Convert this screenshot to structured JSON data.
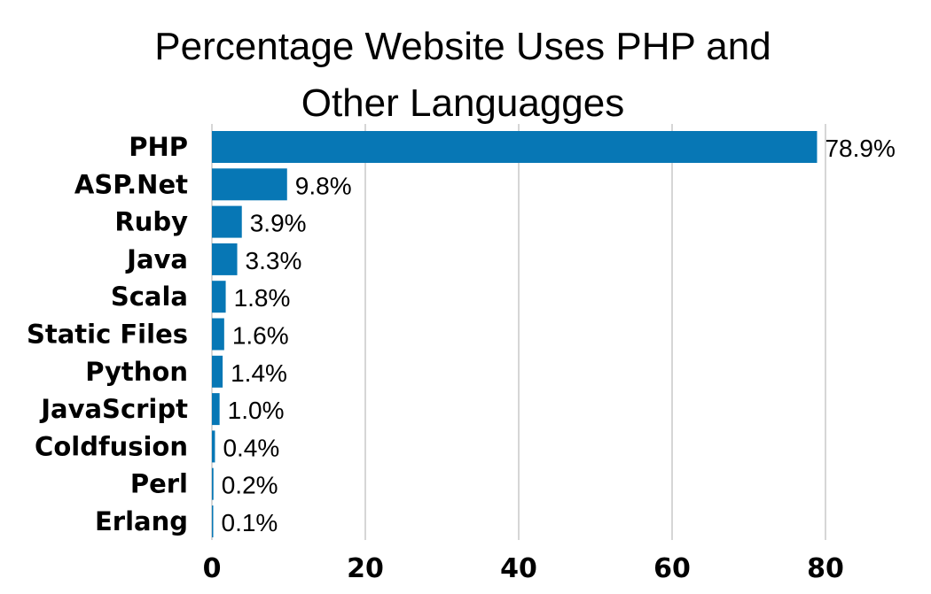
{
  "chart_data": {
    "type": "bar",
    "orientation": "horizontal",
    "title_lines": [
      "Percentage Website Uses PHP and",
      "Other Languagges"
    ],
    "xlabel": "",
    "ylabel": "",
    "categories": [
      "PHP",
      "ASP.Net",
      "Ruby",
      "Java",
      "Scala",
      "Static Files",
      "Python",
      "JavaScript",
      "Coldfusion",
      "Perl",
      "Erlang"
    ],
    "values": [
      78.9,
      9.8,
      3.9,
      3.3,
      1.8,
      1.6,
      1.4,
      1.0,
      0.4,
      0.2,
      0.1
    ],
    "data_labels": [
      "78.9%",
      "9.8%",
      "3.9%",
      "3.3%",
      "1.8%",
      "1.6%",
      "1.4%",
      "1.0%",
      "0.4%",
      "0.2%",
      "0.1%"
    ],
    "xlim": [
      0,
      80
    ],
    "xticks": [
      0,
      20,
      40,
      60,
      80
    ],
    "grid": true,
    "legend": "none",
    "bar_color": "#0777b5",
    "grid_color": "#c8c8c8"
  }
}
